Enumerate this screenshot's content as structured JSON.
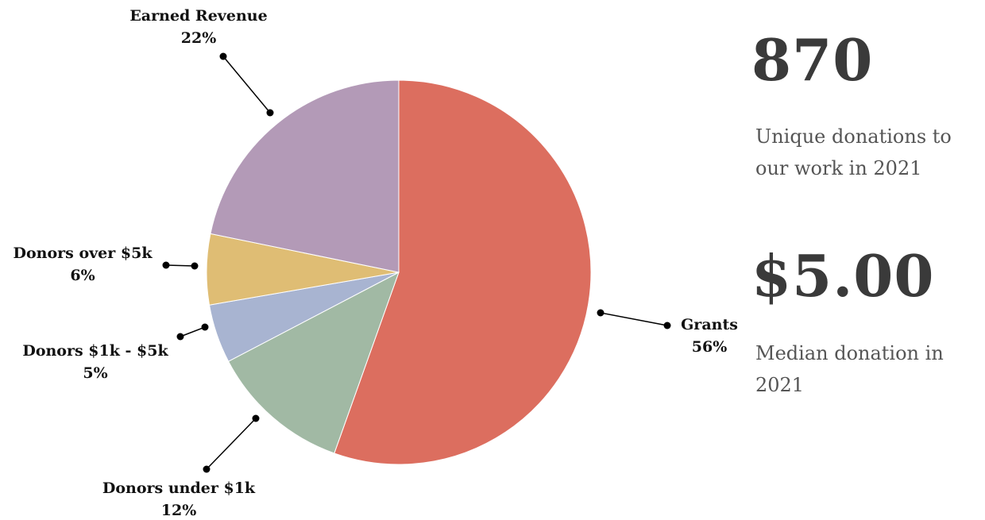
{
  "chart_data": {
    "type": "pie",
    "slices": [
      {
        "name": "Grants",
        "pct_label": "56%",
        "value": 56,
        "color": "#dc6e5f"
      },
      {
        "name": "Donors under $1k",
        "pct_label": "12%",
        "value": 12,
        "color": "#a1b9a4"
      },
      {
        "name": "Donors $1k - $5k",
        "pct_label": "5%",
        "value": 5,
        "color": "#a8b4d1"
      },
      {
        "name": "Donors over $5k",
        "pct_label": "6%",
        "value": 6,
        "color": "#dfbd74"
      },
      {
        "name": "Earned Revenue",
        "pct_label": "22%",
        "value": 22,
        "color": "#b39ab7"
      }
    ],
    "start_angle_deg": 0,
    "direction": "clockwise"
  },
  "stats": [
    {
      "number": "870",
      "caption": "Unique donations to our work in 2021"
    },
    {
      "number": "$5.00",
      "caption": "Median donation in 2021"
    }
  ]
}
